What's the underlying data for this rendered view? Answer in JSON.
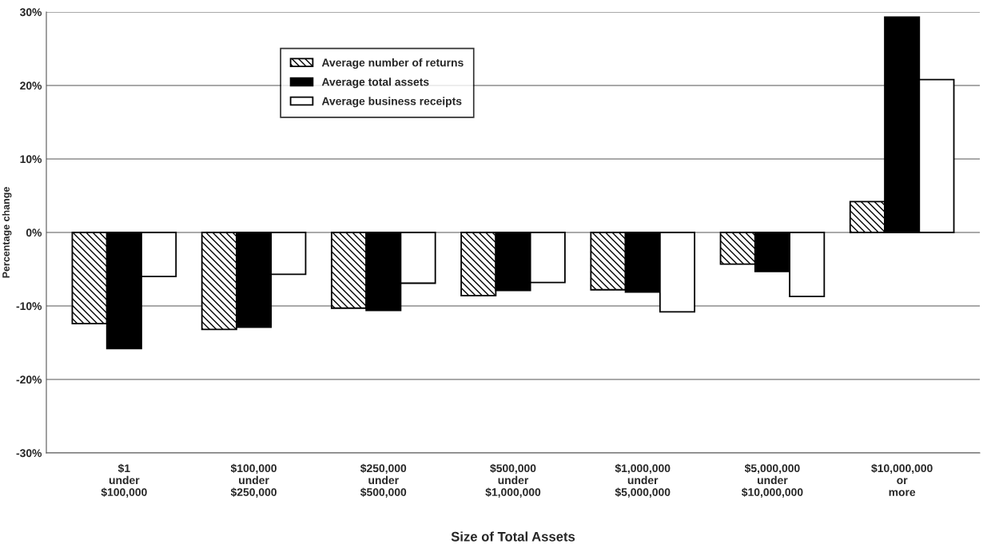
{
  "chart_data": {
    "type": "bar",
    "xlabel": "Size of Total Assets",
    "ylabel": "Percentage change",
    "categories": [
      "$1\nunder\n$100,000",
      "$100,000\nunder\n$250,000",
      "$250,000\nunder\n$500,000",
      "$500,000\nunder\n$1,000,000",
      "$1,000,000\nunder\n$5,000,000",
      "$5,000,000\nunder\n$10,000,000",
      "$10,000,000\nor\nmore"
    ],
    "series": [
      {
        "name": "Average number of returns",
        "color": "#000000",
        "values": [
          -12.4,
          -13.2,
          -10.3,
          -8.6,
          -7.8,
          -4.3,
          4.2
        ]
      },
      {
        "name": "Average total assets",
        "color": "#000000",
        "values": [
          -15.8,
          -12.9,
          -10.6,
          -7.9,
          -8.1,
          -5.3,
          29.3
        ]
      },
      {
        "name": "Average business receipts",
        "color": "#ffffff",
        "values": [
          -6.0,
          -5.7,
          -6.9,
          -6.8,
          -10.8,
          -8.7,
          20.8
        ]
      }
    ],
    "ylim": [
      -30,
      30
    ],
    "yticks": [
      {
        "value": -30,
        "label": "-30%"
      },
      {
        "value": -20,
        "label": "-20%"
      },
      {
        "value": -10,
        "label": "-10%"
      },
      {
        "value": 0,
        "label": "0%"
      },
      {
        "value": 10,
        "label": "10%"
      },
      {
        "value": 20,
        "label": "20%"
      },
      {
        "value": 30,
        "label": "30%"
      }
    ],
    "grid": "y",
    "legend": "top left"
  }
}
